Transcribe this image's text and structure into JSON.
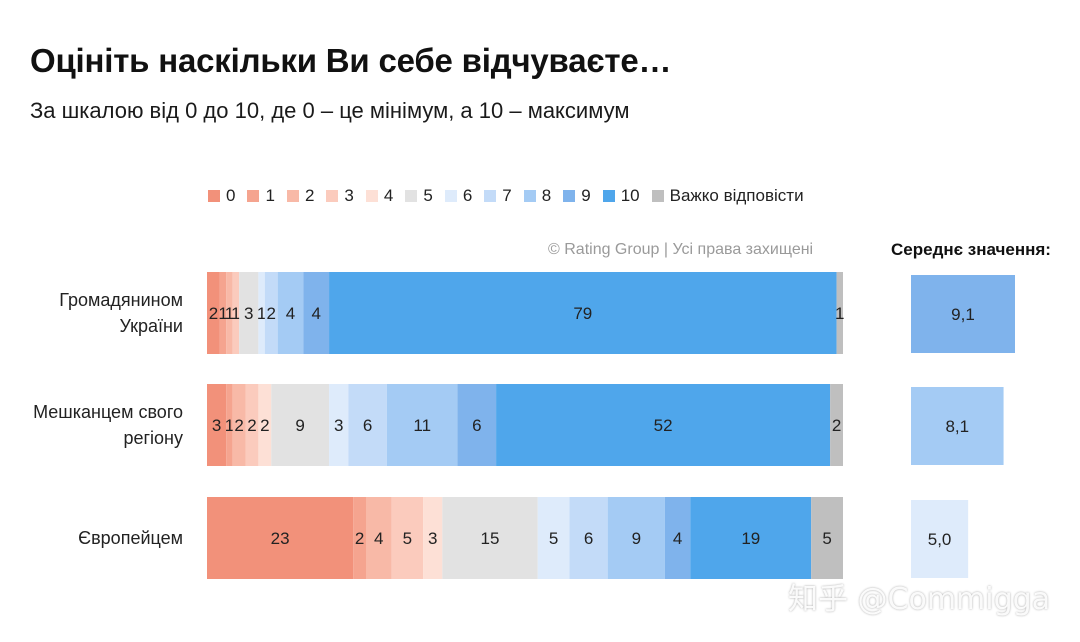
{
  "title": "Оцініть наскільки Ви себе відчуваєте…",
  "subtitle": "За шкалою від 0 до 10, де 0 – це мінімум, а 10 – максимум",
  "copyright": "© Rating Group | Усі права захищені",
  "avg_title": "Середнє значення:",
  "watermark": "知乎 @Commigga",
  "legend": [
    {
      "label": "0",
      "color": "#f2917a"
    },
    {
      "label": "1",
      "color": "#f5a48f"
    },
    {
      "label": "2",
      "color": "#f8b9a7"
    },
    {
      "label": "3",
      "color": "#fbcbbd"
    },
    {
      "label": "4",
      "color": "#fde0d6"
    },
    {
      "label": "5",
      "color": "#e2e2e2"
    },
    {
      "label": "6",
      "color": "#deebfb"
    },
    {
      "label": "7",
      "color": "#c3dbf8"
    },
    {
      "label": "8",
      "color": "#a4cbf4"
    },
    {
      "label": "9",
      "color": "#7fb3ec"
    },
    {
      "label": "10",
      "color": "#4fa6eb"
    },
    {
      "label": "Важко відповісти",
      "color": "#bfbfbf"
    }
  ],
  "chart_data": {
    "type": "bar",
    "stacked": true,
    "orientation": "horizontal",
    "categories": [
      "Громадянином України",
      "Мешканцем свого регіону",
      "Європейцем"
    ],
    "category_lines": [
      [
        "Громадянином",
        "України"
      ],
      [
        "Мешканцем свого",
        "регіону"
      ],
      [
        "Європейцем"
      ]
    ],
    "series": [
      {
        "name": "0",
        "values": [
          2,
          3,
          23
        ]
      },
      {
        "name": "1",
        "values": [
          1,
          1,
          2
        ]
      },
      {
        "name": "2",
        "values": [
          1,
          2,
          4
        ]
      },
      {
        "name": "3",
        "values": [
          1,
          2,
          5
        ]
      },
      {
        "name": "4",
        "values": [
          0,
          2,
          3
        ]
      },
      {
        "name": "5",
        "values": [
          3,
          9,
          15
        ]
      },
      {
        "name": "6",
        "values": [
          1,
          3,
          5
        ]
      },
      {
        "name": "7",
        "values": [
          2,
          6,
          6
        ]
      },
      {
        "name": "8",
        "values": [
          4,
          11,
          9
        ]
      },
      {
        "name": "9",
        "values": [
          4,
          6,
          4
        ]
      },
      {
        "name": "10",
        "values": [
          79,
          52,
          19
        ]
      },
      {
        "name": "Важко відповісти",
        "values": [
          1,
          2,
          5
        ]
      }
    ],
    "averages": {
      "values": [
        9.1,
        8.1,
        5.0
      ],
      "labels": [
        "9,1",
        "8,1",
        "5,0"
      ],
      "max": 10,
      "colors": [
        "#7fb3ec",
        "#a4cbf4",
        "#deebfb"
      ]
    }
  }
}
